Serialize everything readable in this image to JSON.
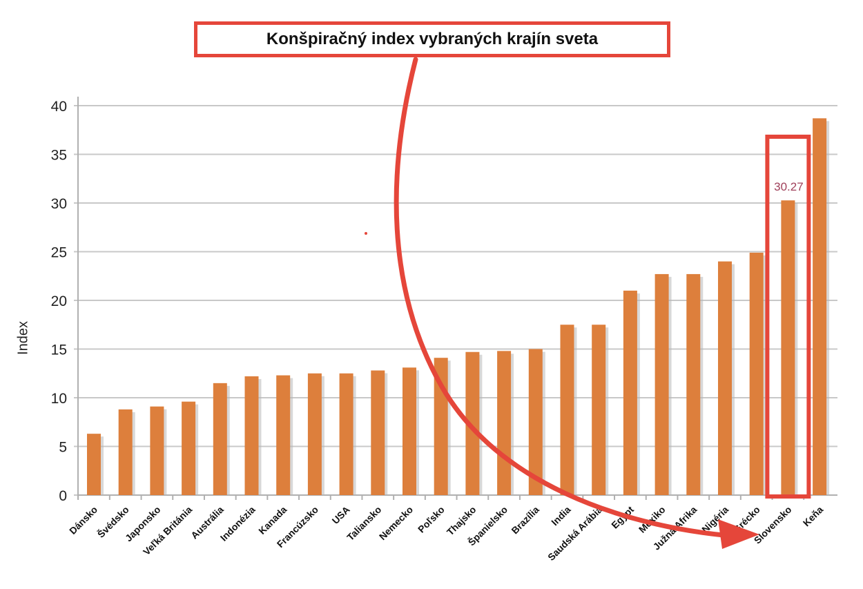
{
  "chart_data": {
    "type": "bar",
    "title": "Konšpiračný index vybraných krajín sveta",
    "xlabel": "",
    "ylabel": "Index",
    "ylim": [
      0,
      40
    ],
    "yticks": [
      0,
      5,
      10,
      15,
      20,
      25,
      30,
      35,
      40
    ],
    "grid": true,
    "legend": null,
    "categories": [
      "Dánsko",
      "Švédsko",
      "Japonsko",
      "Veľká Británia",
      "Austrália",
      "Indonézia",
      "Kanada",
      "Francúzsko",
      "USA",
      "Taliansko",
      "Nemecko",
      "Poľsko",
      "Thajsko",
      "Španielsko",
      "Brazília",
      "India",
      "Saudská Arábia",
      "Egypt",
      "Mexiko",
      "Južná Afrika",
      "Nigéria",
      "Grécko",
      "Slovensko",
      "Keňa"
    ],
    "values": [
      6.3,
      8.8,
      9.1,
      9.6,
      11.5,
      12.2,
      12.3,
      12.5,
      12.5,
      12.8,
      13.1,
      14.1,
      14.7,
      14.8,
      15.0,
      17.5,
      17.5,
      21.0,
      22.7,
      22.7,
      24.0,
      24.9,
      30.27,
      38.7
    ],
    "annotations": [
      {
        "type": "data-label",
        "category": "Slovensko",
        "text": "30.27",
        "color": "#a0405a"
      },
      {
        "type": "highlight-box",
        "category": "Slovensko",
        "color": "#e5463a"
      },
      {
        "type": "arrow",
        "from": "title",
        "to": "Slovensko",
        "color": "#e5463a"
      }
    ]
  },
  "colors": {
    "bar": "#dd7f3c",
    "bar_shadow": "#b8b8b8",
    "grid": "#c8c8c8",
    "axis": "#b0b0b0",
    "highlight": "#e5463a",
    "data_label": "#a0405a"
  }
}
